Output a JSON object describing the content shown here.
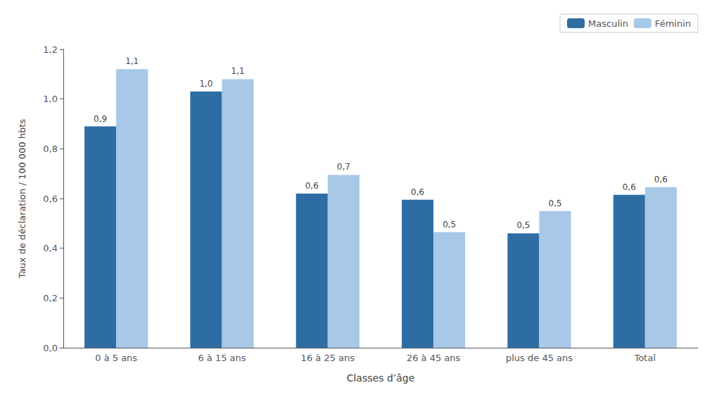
{
  "chart_data": {
    "type": "bar",
    "categories": [
      "0 à 5 ans",
      "6 à 15 ans",
      "16 à 25 ans",
      "26 à 45 ans",
      "plus de 45 ans",
      "Total"
    ],
    "series": [
      {
        "name": "Masculin",
        "color": "#2E6DA4",
        "values": [
          0.89,
          1.03,
          0.62,
          0.595,
          0.46,
          0.615
        ],
        "value_labels": [
          "0,9",
          "1,0",
          "0,6",
          "0,6",
          "0,5",
          "0,6"
        ]
      },
      {
        "name": "Féminin",
        "color": "#A8C8E8",
        "values": [
          1.12,
          1.08,
          0.695,
          0.465,
          0.55,
          0.645
        ],
        "value_labels": [
          "1,1",
          "1,1",
          "0,7",
          "0,5",
          "0,5",
          "0,6"
        ]
      }
    ],
    "xlabel": "Classes d’âge",
    "ylabel": "Taux de déclaration / 100 000 hbts",
    "ylim": [
      0,
      1.2
    ],
    "yticks": [
      {
        "value": 0.0,
        "label": "0,0"
      },
      {
        "value": 0.2,
        "label": "0,2"
      },
      {
        "value": 0.4,
        "label": "0,4"
      },
      {
        "value": 0.6,
        "label": "0,6"
      },
      {
        "value": 0.8,
        "label": "0,8"
      },
      {
        "value": 1.0,
        "label": "1,0"
      },
      {
        "value": 1.2,
        "label": "1,2"
      }
    ],
    "grid": false,
    "legend": "upper right",
    "data_labels": true
  }
}
